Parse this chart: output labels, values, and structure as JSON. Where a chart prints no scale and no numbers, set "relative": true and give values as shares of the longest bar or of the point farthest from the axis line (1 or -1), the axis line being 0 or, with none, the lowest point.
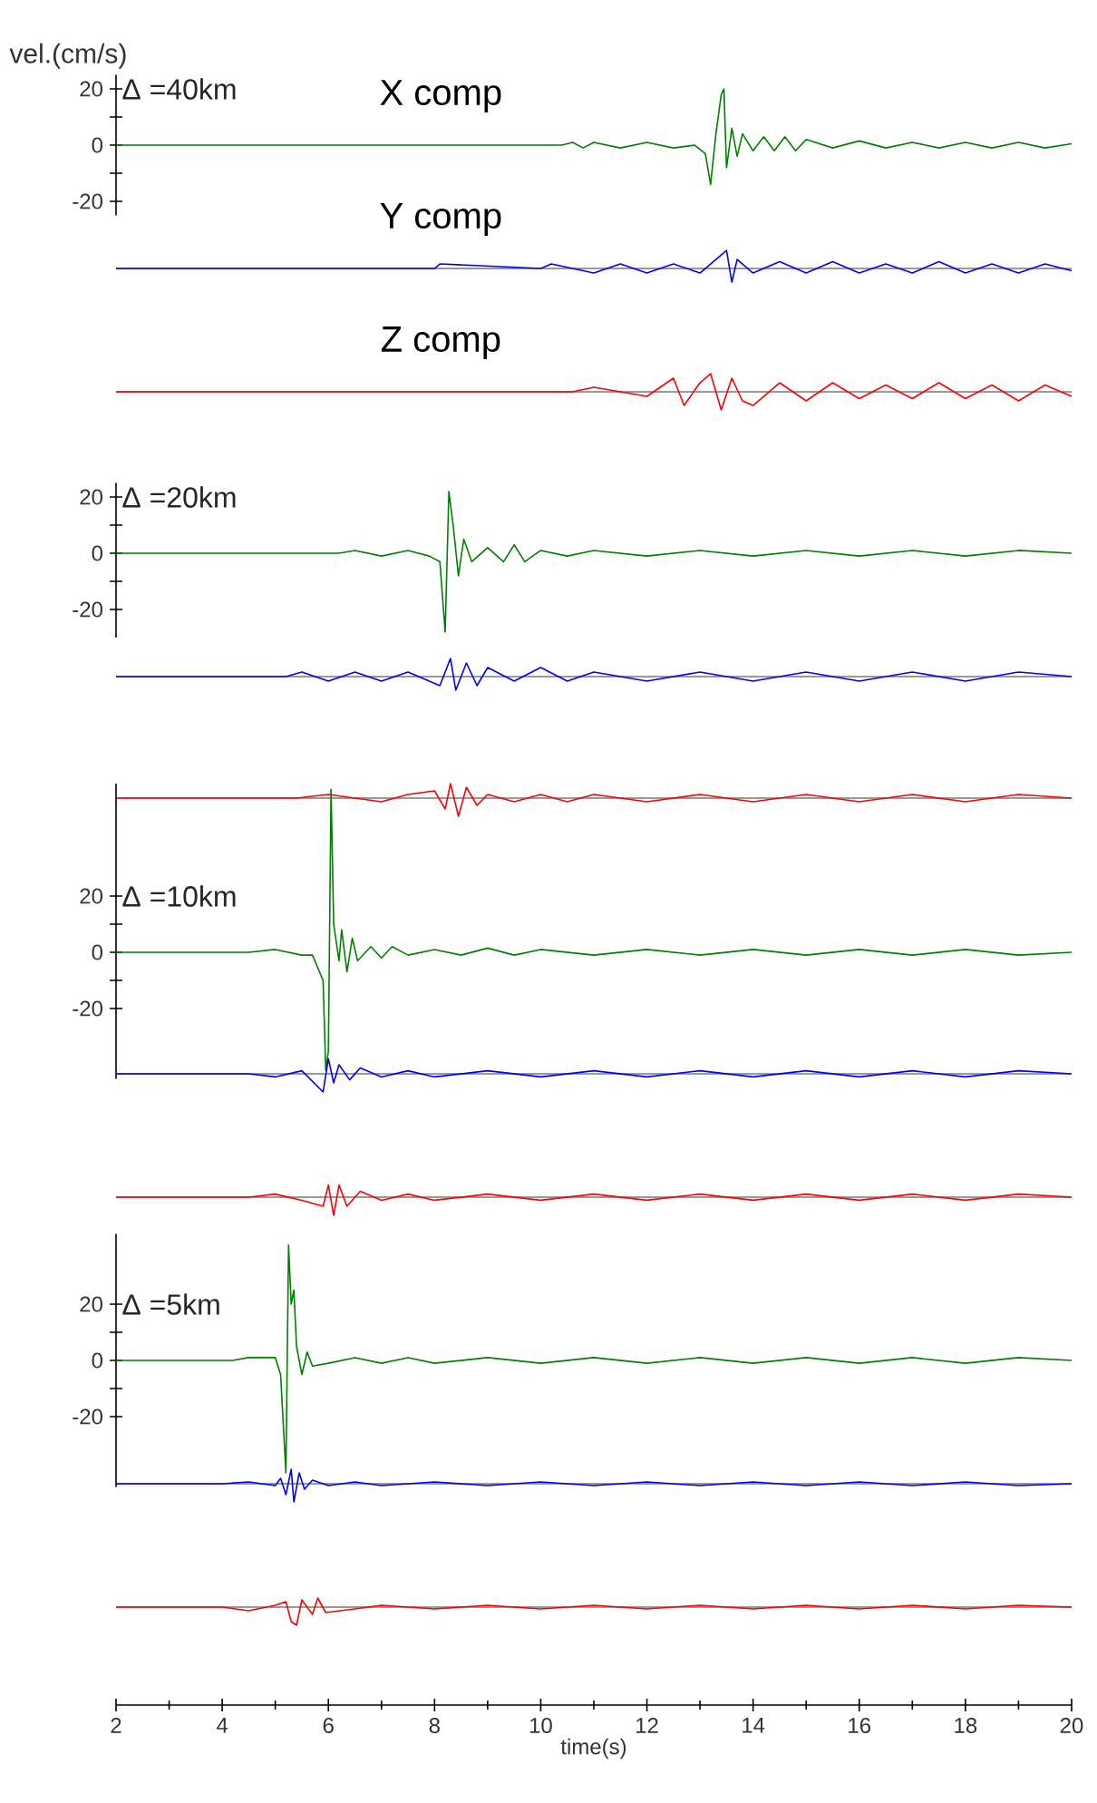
{
  "chart_data": [
    {
      "type": "line",
      "title": "Δ =40km",
      "subtitle": "X comp",
      "ylabel": "vel.(cm/s)",
      "xlim": [
        2,
        20
      ],
      "ylim": [
        -25,
        25
      ],
      "yticks": [
        20,
        0,
        -20
      ],
      "tick_labels": "y",
      "x": [
        2,
        10.4,
        10.6,
        10.8,
        11,
        11.5,
        12,
        12.5,
        12.9,
        13.1,
        13.2,
        13.3,
        13.4,
        13.45,
        13.5,
        13.6,
        13.7,
        13.8,
        14,
        14.2,
        14.4,
        14.6,
        14.8,
        15,
        15.5,
        16,
        16.5,
        17,
        17.5,
        18,
        18.5,
        19,
        19.5,
        20
      ],
      "series": [
        {
          "color": "#008000",
          "values": [
            0,
            0,
            1,
            -1,
            1,
            -1,
            1,
            -1,
            0,
            -3,
            -14,
            4,
            18,
            20,
            -8,
            6,
            -4,
            4,
            -2,
            3,
            -2,
            3,
            -2,
            2,
            -1,
            1.5,
            -1,
            1,
            -1,
            1,
            -1,
            1,
            -1,
            0.5
          ]
        }
      ]
    },
    {
      "type": "line",
      "subtitle": "Y comp",
      "relative": true,
      "xlim": [
        2,
        20
      ],
      "x": [
        2,
        8,
        8.1,
        10,
        10.2,
        11,
        11.5,
        12,
        12.5,
        13,
        13.5,
        13.6,
        13.7,
        14,
        14.5,
        15,
        15.5,
        16,
        16.5,
        17,
        17.5,
        18,
        18.5,
        19,
        19.5,
        20
      ],
      "series": [
        {
          "color": "#0000ff",
          "values": [
            0,
            0,
            0.25,
            0,
            0.25,
            -0.25,
            0.25,
            -0.25,
            0.25,
            -0.25,
            1,
            -0.75,
            0.5,
            -0.25,
            0.375,
            -0.25,
            0.375,
            -0.25,
            0.25,
            -0.25,
            0.375,
            -0.25,
            0.25,
            -0.25,
            0.25,
            -0.125
          ]
        }
      ]
    },
    {
      "type": "line",
      "subtitle": "Z comp",
      "relative": true,
      "xlim": [
        2,
        20
      ],
      "x": [
        2,
        10.6,
        11,
        12,
        12.5,
        12.7,
        13,
        13.2,
        13.4,
        13.6,
        13.8,
        14,
        14.5,
        15,
        15.5,
        16,
        16.5,
        17,
        17.5,
        18,
        18.5,
        19,
        19.5,
        20
      ],
      "series": [
        {
          "color": "#ff0000",
          "values": [
            0,
            0,
            0.25,
            -0.25,
            0.75,
            -0.75,
            0.5,
            1,
            -1,
            0.75,
            -0.5,
            -0.75,
            0.5,
            -0.5,
            0.5,
            -0.375,
            0.375,
            -0.375,
            0.5,
            -0.375,
            0.375,
            -0.5,
            0.375,
            -0.25
          ]
        }
      ]
    },
    {
      "type": "line",
      "title": "Δ =20km",
      "xlim": [
        2,
        20
      ],
      "ylim": [
        -30,
        25
      ],
      "yticks": [
        20,
        0,
        -20
      ],
      "tick_labels": "y",
      "x": [
        2,
        6.2,
        6.5,
        7,
        7.5,
        7.9,
        8.1,
        8.2,
        8.27,
        8.35,
        8.45,
        8.55,
        8.7,
        9,
        9.3,
        9.5,
        9.7,
        10,
        10.5,
        11,
        12,
        13,
        14,
        15,
        16,
        17,
        18,
        19,
        20
      ],
      "series": [
        {
          "color": "#008000",
          "values": [
            0,
            0,
            1,
            -1,
            1,
            -1,
            -3,
            -28,
            22,
            10,
            -8,
            5,
            -3,
            2,
            -3,
            3,
            -3,
            1,
            -1,
            1,
            -1,
            1,
            -1,
            1,
            -1,
            1,
            -1,
            1,
            0
          ]
        }
      ]
    },
    {
      "type": "line",
      "relative": true,
      "xlim": [
        2,
        20
      ],
      "x": [
        2,
        5.2,
        5.5,
        6,
        6.5,
        7,
        7.5,
        8.1,
        8.3,
        8.4,
        8.6,
        8.8,
        9,
        9.5,
        10,
        10.5,
        11,
        12,
        13,
        14,
        15,
        16,
        17,
        18,
        19,
        20
      ],
      "series": [
        {
          "color": "#0000ff",
          "values": [
            0,
            0,
            0.25,
            -0.25,
            0.25,
            -0.25,
            0.25,
            -0.5,
            1,
            -0.75,
            0.75,
            -0.5,
            0.5,
            -0.25,
            0.5,
            -0.25,
            0.25,
            -0.25,
            0.25,
            -0.25,
            0.25,
            -0.25,
            0.25,
            -0.25,
            0.25,
            0
          ]
        }
      ]
    },
    {
      "type": "line",
      "relative": true,
      "xlim": [
        2,
        20
      ],
      "x": [
        2,
        5.4,
        6,
        7,
        7.5,
        8,
        8.2,
        8.3,
        8.45,
        8.6,
        8.8,
        9,
        9.5,
        10,
        10.5,
        11,
        12,
        13,
        14,
        15,
        16,
        17,
        18,
        19,
        20
      ],
      "series": [
        {
          "color": "#ff0000",
          "values": [
            0,
            0,
            0.2,
            -0.2,
            0.2,
            0.4,
            -0.6,
            0.8,
            -1,
            0.6,
            -0.4,
            0.2,
            -0.2,
            0.2,
            -0.2,
            0.2,
            -0.2,
            0.2,
            -0.2,
            0.2,
            -0.2,
            0.2,
            -0.2,
            0.2,
            0
          ]
        }
      ]
    },
    {
      "type": "line",
      "title": "Δ =10km",
      "xlim": [
        2,
        20
      ],
      "ylim": [
        -45,
        60
      ],
      "yticks": [
        20,
        0,
        -20
      ],
      "tick_labels": "y",
      "x": [
        2,
        4.5,
        5,
        5.5,
        5.7,
        5.9,
        5.95,
        6.0,
        6.05,
        6.1,
        6.2,
        6.25,
        6.35,
        6.45,
        6.55,
        6.8,
        7,
        7.2,
        7.5,
        8,
        8.5,
        9,
        9.5,
        10,
        11,
        12,
        13,
        14,
        15,
        16,
        17,
        18,
        19,
        20
      ],
      "series": [
        {
          "color": "#008000",
          "values": [
            0,
            0,
            1,
            -1,
            -1,
            -10,
            -42,
            -35,
            58,
            10,
            -3,
            8,
            -7,
            5,
            -3,
            2,
            -2,
            2,
            -1,
            1,
            -1,
            1.5,
            -1,
            1,
            -1,
            1,
            -1,
            1,
            -1,
            1,
            -1,
            1,
            -1,
            0
          ]
        }
      ]
    },
    {
      "type": "line",
      "relative": true,
      "xlim": [
        2,
        20
      ],
      "x": [
        2,
        4.5,
        5,
        5.5,
        5.9,
        6.0,
        6.1,
        6.2,
        6.4,
        6.6,
        7,
        7.5,
        8,
        9,
        10,
        11,
        12,
        13,
        14,
        15,
        16,
        17,
        18,
        19,
        20
      ],
      "series": [
        {
          "color": "#0000ff",
          "values": [
            0,
            0,
            -0.17,
            0.17,
            -1,
            0.83,
            -0.5,
            0.5,
            -0.33,
            0.33,
            -0.17,
            0.17,
            -0.17,
            0.17,
            -0.17,
            0.17,
            -0.17,
            0.17,
            -0.17,
            0.17,
            -0.17,
            0.17,
            -0.17,
            0.17,
            0
          ]
        }
      ]
    },
    {
      "type": "line",
      "relative": true,
      "xlim": [
        2,
        20
      ],
      "x": [
        2,
        4.5,
        5,
        5.5,
        5.9,
        6.0,
        6.1,
        6.2,
        6.35,
        6.6,
        7,
        7.5,
        8,
        9,
        10,
        11,
        12,
        13,
        14,
        15,
        16,
        17,
        18,
        19,
        20
      ],
      "series": [
        {
          "color": "#ff0000",
          "values": [
            0,
            0,
            0.17,
            -0.17,
            -0.5,
            0.67,
            -1,
            0.67,
            -0.5,
            0.33,
            -0.17,
            0.17,
            -0.17,
            0.17,
            -0.17,
            0.17,
            -0.17,
            0.17,
            -0.17,
            0.17,
            -0.17,
            0.17,
            -0.17,
            0.17,
            0
          ]
        }
      ]
    },
    {
      "type": "line",
      "title": "Δ =5km",
      "xlim": [
        2,
        20
      ],
      "ylim": [
        -45,
        45
      ],
      "yticks": [
        20,
        0,
        -20
      ],
      "tick_labels": "y",
      "x": [
        2,
        4.2,
        4.5,
        5,
        5.1,
        5.2,
        5.25,
        5.3,
        5.35,
        5.4,
        5.5,
        5.6,
        5.7,
        6,
        6.5,
        7,
        7.5,
        8,
        9,
        10,
        11,
        12,
        13,
        14,
        15,
        16,
        17,
        18,
        19,
        20
      ],
      "series": [
        {
          "color": "#008000",
          "values": [
            0,
            0,
            1,
            1,
            -5,
            -40,
            41,
            20,
            25,
            5,
            -5,
            3,
            -2,
            -1,
            1,
            -1,
            1,
            -1,
            1,
            -1,
            1,
            -1,
            1,
            -1,
            1,
            -1,
            1,
            -1,
            1,
            0
          ]
        }
      ]
    },
    {
      "type": "line",
      "relative": true,
      "xlim": [
        2,
        20
      ],
      "x": [
        2,
        4,
        4.5,
        5,
        5.1,
        5.2,
        5.3,
        5.35,
        5.45,
        5.55,
        5.7,
        6,
        6.5,
        7,
        8,
        9,
        10,
        11,
        12,
        13,
        14,
        15,
        16,
        17,
        18,
        19,
        20
      ],
      "series": [
        {
          "color": "#0000ff",
          "values": [
            0,
            0,
            0.1,
            -0.1,
            0.3,
            -0.6,
            0.8,
            -1,
            0.6,
            -0.3,
            0.2,
            -0.1,
            0.1,
            -0.1,
            0.1,
            -0.1,
            0.1,
            -0.1,
            0.1,
            -0.1,
            0.1,
            -0.1,
            0.1,
            -0.1,
            0.1,
            -0.1,
            0
          ]
        }
      ]
    },
    {
      "type": "line",
      "relative": true,
      "xlabel": "time(s)",
      "xlim": [
        2,
        20
      ],
      "xticks": [
        2,
        4,
        6,
        8,
        10,
        12,
        14,
        16,
        18,
        20
      ],
      "tick_labels": "x",
      "x": [
        2,
        4,
        4.5,
        5,
        5.2,
        5.3,
        5.4,
        5.5,
        5.7,
        5.8,
        5.95,
        6.5,
        7,
        8,
        9,
        10,
        11,
        12,
        13,
        14,
        15,
        16,
        17,
        18,
        19,
        20
      ],
      "series": [
        {
          "color": "#ff0000",
          "values": [
            0,
            0,
            -0.2,
            0.1,
            0.3,
            -0.8,
            -1,
            0.4,
            -0.4,
            0.5,
            -0.3,
            -0.1,
            0.1,
            -0.1,
            0.1,
            -0.1,
            0.1,
            -0.1,
            0.1,
            -0.1,
            0.1,
            -0.1,
            0.1,
            -0.1,
            0.1,
            0
          ]
        }
      ]
    }
  ]
}
